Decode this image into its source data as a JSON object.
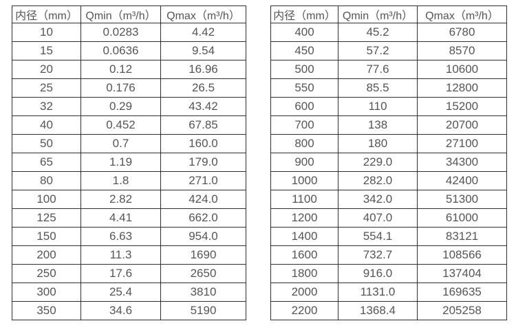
{
  "colors": {
    "background": "#ffffff",
    "border": "#2e2e2e",
    "text": "#555555"
  },
  "chart_data": [
    {
      "type": "table",
      "title": "",
      "headers": [
        "内径（mm）",
        "Qmin（m³/h）",
        "Qmax（m³/h）"
      ],
      "rows": [
        [
          "10",
          "0.0283",
          "4.42"
        ],
        [
          "15",
          "0.0636",
          "9.54"
        ],
        [
          "20",
          "0.12",
          "16.96"
        ],
        [
          "25",
          "0.176",
          "26.5"
        ],
        [
          "32",
          "0.29",
          "43.42"
        ],
        [
          "40",
          "0.452",
          "67.85"
        ],
        [
          "50",
          "0.7",
          "160.0"
        ],
        [
          "65",
          "1.19",
          "179.0"
        ],
        [
          "80",
          "1.8",
          "271.0"
        ],
        [
          "100",
          "2.82",
          "424.0"
        ],
        [
          "125",
          "4.41",
          "662.0"
        ],
        [
          "150",
          "6.63",
          "954.0"
        ],
        [
          "200",
          "11.3",
          "1690"
        ],
        [
          "250",
          "17.6",
          "2650"
        ],
        [
          "300",
          "25.4",
          "3810"
        ],
        [
          "350",
          "34.6",
          "5190"
        ]
      ]
    },
    {
      "type": "table",
      "title": "",
      "headers": [
        "内径（mm）",
        "Qmin（m³/h）",
        "Qmax（m³/h）"
      ],
      "rows": [
        [
          "400",
          "45.2",
          "6780"
        ],
        [
          "450",
          "57.2",
          "8570"
        ],
        [
          "500",
          "77.6",
          "10600"
        ],
        [
          "550",
          "85.5",
          "12800"
        ],
        [
          "600",
          "110",
          "15200"
        ],
        [
          "700",
          "138",
          "20700"
        ],
        [
          "800",
          "180",
          "27100"
        ],
        [
          "900",
          "229.0",
          "34300"
        ],
        [
          "1000",
          "282.0",
          "42400"
        ],
        [
          "1100",
          "342.0",
          "51300"
        ],
        [
          "1200",
          "407.0",
          "61000"
        ],
        [
          "1400",
          "554.1",
          "83121"
        ],
        [
          "1600",
          "732.7",
          "108566"
        ],
        [
          "1800",
          "916.0",
          "137404"
        ],
        [
          "2000",
          "1131.0",
          "169635"
        ],
        [
          "2200",
          "1368.4",
          "205258"
        ]
      ]
    }
  ]
}
